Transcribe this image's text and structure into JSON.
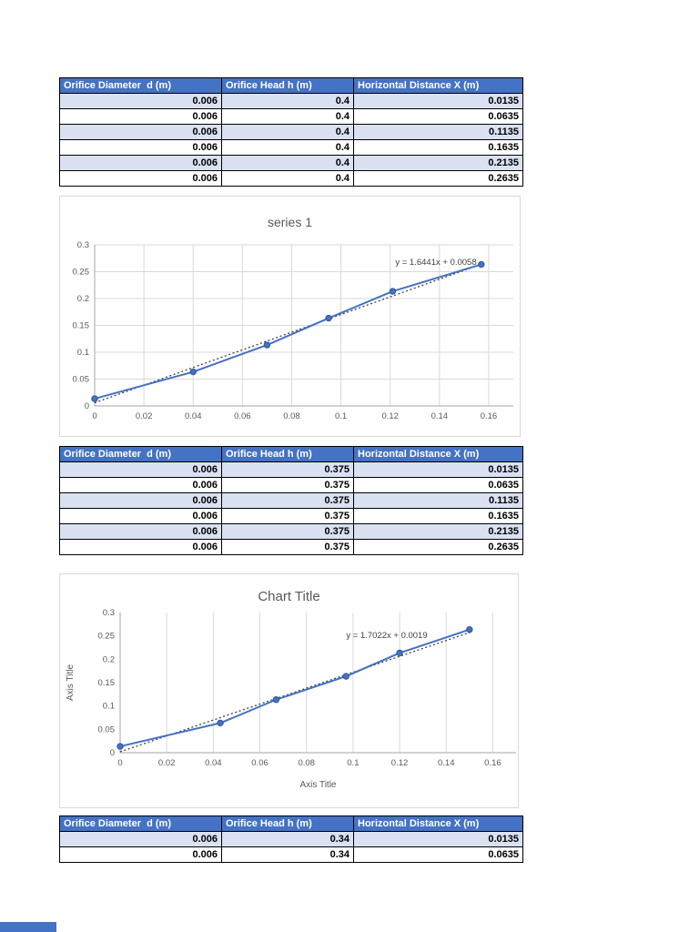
{
  "colors": {
    "table_header_bg": "#4472C4",
    "table_band_bg": "#D9E1F2",
    "series_color": "#4472C4",
    "marker_edge_color": "#2F5597",
    "trendline_color": "#404040",
    "grid_color": "#D9D9D9",
    "axis_color": "#A6A6A6",
    "chart_text_color": "#595959"
  },
  "tables": [
    {
      "headers": [
        "Orifice Diameter  d (m)",
        "Orifice Head h (m)",
        "Horizontal Distance X (m)"
      ],
      "rows": [
        [
          "0.006",
          "0.4",
          "0.0135"
        ],
        [
          "0.006",
          "0.4",
          "0.0635"
        ],
        [
          "0.006",
          "0.4",
          "0.1135"
        ],
        [
          "0.006",
          "0.4",
          "0.1635"
        ],
        [
          "0.006",
          "0.4",
          "0.2135"
        ],
        [
          "0.006",
          "0.4",
          "0.2635"
        ]
      ]
    },
    {
      "headers": [
        "Orifice Diameter  d (m)",
        "Orifice Head h (m)",
        "Horizontal Distance X (m)"
      ],
      "rows": [
        [
          "0.006",
          "0.375",
          "0.0135"
        ],
        [
          "0.006",
          "0.375",
          "0.0635"
        ],
        [
          "0.006",
          "0.375",
          "0.1135"
        ],
        [
          "0.006",
          "0.375",
          "0.1635"
        ],
        [
          "0.006",
          "0.375",
          "0.2135"
        ],
        [
          "0.006",
          "0.375",
          "0.2635"
        ]
      ]
    },
    {
      "headers": [
        "Orifice Diameter  d (m)",
        "Orifice Head h (m)",
        "Horizontal Distance X (m)"
      ],
      "rows": [
        [
          "0.006",
          "0.34",
          "0.0135"
        ],
        [
          "0.006",
          "0.34",
          "0.0635"
        ]
      ]
    }
  ],
  "chart_data": [
    {
      "type": "scatter",
      "title": "series 1",
      "x": [
        0,
        0.04,
        0.07,
        0.095,
        0.121,
        0.157
      ],
      "y": [
        0.0135,
        0.0635,
        0.1135,
        0.1635,
        0.2135,
        0.2635
      ],
      "xlabel": "",
      "ylabel": "",
      "xlim": [
        0,
        0.17
      ],
      "ylim": [
        0,
        0.3
      ],
      "xticks": [
        "0",
        "0.02",
        "0.04",
        "0.06",
        "0.08",
        "0.1",
        "0.12",
        "0.14",
        "0.16"
      ],
      "yticks": [
        "0",
        "0.05",
        "0.1",
        "0.15",
        "0.2",
        "0.25",
        "0.3"
      ],
      "grid": {
        "h": true,
        "v": true
      },
      "legend": "none",
      "trendline": {
        "equation": "y = 1.6441x + 0.0058",
        "slope": 1.6441,
        "intercept": 0.0058,
        "style": "dotted"
      }
    },
    {
      "type": "scatter",
      "title": "Chart Title",
      "x": [
        0,
        0.043,
        0.067,
        0.097,
        0.12,
        0.15
      ],
      "y": [
        0.0135,
        0.0635,
        0.1135,
        0.1635,
        0.2135,
        0.2635
      ],
      "xlabel": "Axis Title",
      "ylabel": "Axis Title",
      "xlim": [
        0,
        0.17
      ],
      "ylim": [
        0,
        0.3
      ],
      "xticks": [
        "0",
        "0.02",
        "0.04",
        "0.06",
        "0.08",
        "0.1",
        "0.12",
        "0.14",
        "0.16"
      ],
      "yticks": [
        "0",
        "0.05",
        "0.1",
        "0.15",
        "0.2",
        "0.25",
        "0.3"
      ],
      "grid": {
        "h": false,
        "v": true
      },
      "legend": "none",
      "trendline": {
        "equation": "y = 1.7022x + 0.0019",
        "slope": 1.7022,
        "intercept": 0.0019,
        "style": "dotted"
      }
    }
  ]
}
